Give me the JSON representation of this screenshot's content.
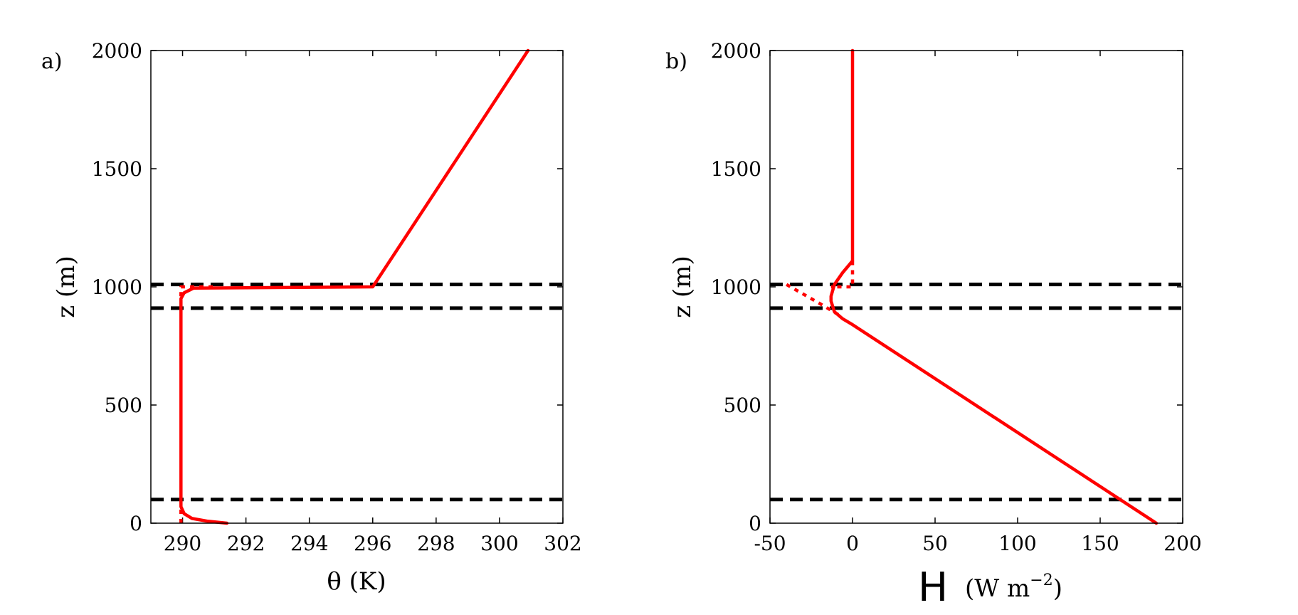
{
  "chart_data": [
    {
      "type": "line",
      "panel_label": "a)",
      "xlabel": "θ (K)",
      "ylabel": "z (m)",
      "xlim": [
        289,
        302
      ],
      "ylim": [
        0,
        2000
      ],
      "xticks": [
        290,
        292,
        294,
        296,
        298,
        300,
        302
      ],
      "yticks": [
        0,
        500,
        1000,
        1500,
        2000
      ],
      "grid": false,
      "series": [
        {
          "style": "solid",
          "color": "#ff0000",
          "points": [
            [
              291.4,
              0
            ],
            [
              290.8,
              8
            ],
            [
              290.3,
              20
            ],
            [
              290.05,
              40
            ],
            [
              289.95,
              70
            ],
            [
              289.95,
              100
            ],
            [
              289.95,
              850
            ],
            [
              289.95,
              950
            ],
            [
              290.05,
              975
            ],
            [
              290.35,
              995
            ],
            [
              296.0,
              1000
            ],
            [
              300.9,
              2000
            ]
          ]
        },
        {
          "style": "dotted",
          "color": "#ff0000",
          "points": [
            [
              289.95,
              0
            ],
            [
              289.95,
              70
            ]
          ]
        },
        {
          "style": "dotted",
          "color": "#ff0000",
          "points": [
            [
              289.95,
              960
            ],
            [
              289.95,
              1000
            ],
            [
              291.0,
              1000
            ]
          ]
        }
      ],
      "hlines": [
        {
          "y": 100,
          "style": "dashed",
          "color": "#000000"
        },
        {
          "y": 910,
          "style": "dashed",
          "color": "#000000"
        },
        {
          "y": 1010,
          "style": "dashed",
          "color": "#000000"
        }
      ]
    },
    {
      "type": "line",
      "panel_label": "b)",
      "xlabel_main": "H",
      "xlabel_units": "(W m",
      "xlabel_exp": "−2",
      "xlabel_close": ")",
      "ylabel": "z (m)",
      "xlim": [
        -50,
        200
      ],
      "ylim": [
        0,
        2000
      ],
      "xticks": [
        -50,
        0,
        50,
        100,
        150,
        200
      ],
      "yticks": [
        0,
        500,
        1000,
        1500,
        2000
      ],
      "grid": false,
      "series": [
        {
          "style": "solid",
          "color": "#ff0000",
          "points": [
            [
              184,
              0
            ],
            [
              0,
              840
            ],
            [
              -6,
              865
            ],
            [
              -11,
              895
            ],
            [
              -13,
              940
            ],
            [
              -13,
              960
            ],
            [
              -11,
              1010
            ],
            [
              -6,
              1060
            ],
            [
              0,
              1110
            ],
            [
              0,
              2000
            ]
          ]
        },
        {
          "style": "dotted",
          "color": "#ff0000",
          "points": [
            [
              0,
              1110
            ],
            [
              0,
              1000
            ],
            [
              -13,
              1000
            ]
          ]
        },
        {
          "style": "dotted",
          "color": "#ff0000",
          "points": [
            [
              -40,
              1010
            ],
            [
              -20,
              930
            ],
            [
              -8,
              880
            ]
          ]
        }
      ],
      "hlines": [
        {
          "y": 100,
          "style": "dashed",
          "color": "#000000"
        },
        {
          "y": 910,
          "style": "dashed",
          "color": "#000000"
        },
        {
          "y": 1010,
          "style": "dashed",
          "color": "#000000"
        }
      ]
    }
  ]
}
